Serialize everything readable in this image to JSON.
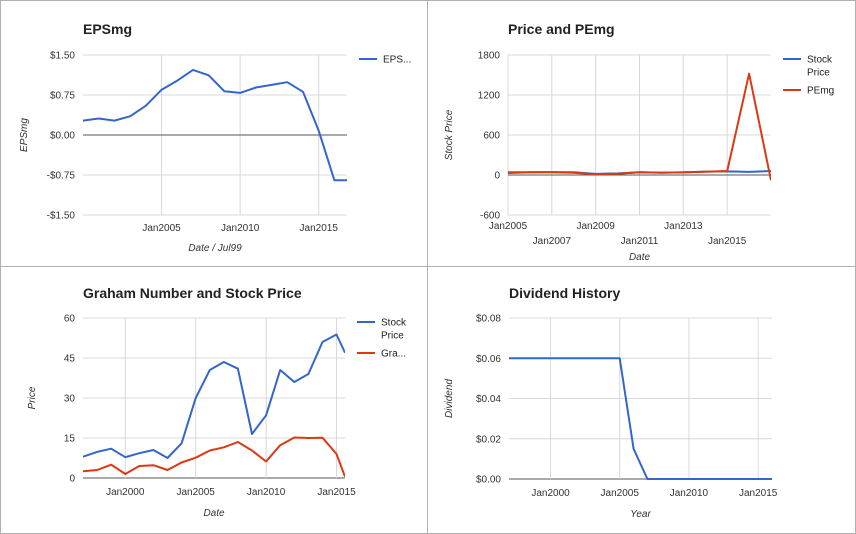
{
  "charts": [
    {
      "id": "eps",
      "title": "EPSmg",
      "xlabel": "Date / Jul99",
      "ylabel": "EPSmg",
      "chart_data": {
        "type": "line",
        "title": "EPSmg",
        "xlabel": "Date / Jul99",
        "ylabel": "EPSmg",
        "xlim": [
          2000,
          2016.8
        ],
        "ylim": [
          -1.5,
          1.5
        ],
        "x_ticks": [
          2005,
          2010,
          2015
        ],
        "x_tick_labels": [
          "Jan2005",
          "Jan2010",
          "Jan2015"
        ],
        "y_ticks": [
          -1.5,
          -0.75,
          0,
          0.75,
          1.5
        ],
        "y_tick_labels": [
          "-$1.50",
          "-$0.75",
          "$0.00",
          "$0.75",
          "$1.50"
        ],
        "grid": true,
        "legend_position": "right",
        "series": [
          {
            "name": "EPS...",
            "color": "#3366cc",
            "x": [
              2000,
              2001,
              2002,
              2003,
              2004,
              2005,
              2006,
              2007,
              2008,
              2009,
              2010,
              2011,
              2012,
              2013,
              2014,
              2015,
              2016,
              2016.8
            ],
            "y": [
              0.27,
              0.31,
              0.27,
              0.35,
              0.55,
              0.85,
              1.02,
              1.22,
              1.12,
              0.82,
              0.79,
              0.89,
              0.94,
              0.99,
              0.81,
              0.08,
              -0.85,
              -0.85
            ]
          }
        ]
      }
    },
    {
      "id": "price_pe",
      "title": "Price and PEmg",
      "xlabel": "Date",
      "ylabel": "Stock Price",
      "chart_data": {
        "type": "line",
        "title": "Price and PEmg",
        "xlabel": "Date",
        "ylabel": "Stock Price",
        "xlim": [
          2005,
          2017
        ],
        "ylim": [
          -600,
          1800
        ],
        "x_ticks": [
          2005,
          2007,
          2009,
          2011,
          2013,
          2015
        ],
        "x_tick_labels": [
          "Jan2005",
          "Jan2007",
          "Jan2009",
          "Jan2011",
          "Jan2013",
          "Jan2015"
        ],
        "y_ticks": [
          -600,
          0,
          600,
          1200,
          1800
        ],
        "y_tick_labels": [
          "-600",
          "0",
          "600",
          "1200",
          "1800"
        ],
        "grid": true,
        "legend_position": "right",
        "series": [
          {
            "name": "Stock Price",
            "color": "#3366cc",
            "x": [
              2005,
              2006,
              2007,
              2008,
              2009,
              2010,
              2011,
              2012,
              2013,
              2014,
              2015,
              2016,
              2017
            ],
            "y": [
              30,
              40,
              44,
              41,
              16,
              24,
              41,
              36,
              39,
              51,
              54,
              47,
              60
            ]
          },
          {
            "name": "PEmg",
            "color": "#dc3912",
            "x": [
              2005,
              2006,
              2007,
              2008,
              2009,
              2010,
              2011,
              2012,
              2013,
              2014,
              2015,
              2016,
              2017
            ],
            "y": [
              40,
              42,
              40,
              35,
              12,
              20,
              42,
              35,
              40,
              50,
              60,
              1520,
              -80
            ]
          }
        ]
      }
    },
    {
      "id": "graham",
      "title": "Graham Number and Stock Price",
      "xlabel": "Date",
      "ylabel": "Price",
      "chart_data": {
        "type": "line",
        "title": "Graham Number and Stock Price",
        "xlabel": "Date",
        "ylabel": "Price",
        "xlim": [
          1997,
          2015.6
        ],
        "ylim": [
          0,
          60
        ],
        "x_ticks": [
          2000,
          2005,
          2010,
          2015
        ],
        "x_tick_labels": [
          "Jan2000",
          "Jan2005",
          "Jan2010",
          "Jan2015"
        ],
        "y_ticks": [
          0,
          15,
          30,
          45,
          60
        ],
        "y_tick_labels": [
          "0",
          "15",
          "30",
          "45",
          "60"
        ],
        "grid": true,
        "legend_position": "right",
        "series": [
          {
            "name": "Stock Price",
            "color": "#3366cc",
            "x": [
              1997,
              1998,
              1999,
              2000,
              2001,
              2002,
              2003,
              2004,
              2005,
              2006,
              2007,
              2008,
              2009,
              2010,
              2011,
              2012,
              2013,
              2014,
              2015,
              2015.6
            ],
            "y": [
              8,
              9.8,
              11,
              7.8,
              9.3,
              10.5,
              7.5,
              13,
              30,
              40.5,
              43.5,
              41,
              16.5,
              23.5,
              40.5,
              36,
              39,
              51,
              53.8,
              47
            ]
          },
          {
            "name": "Gra...",
            "color": "#dc3912",
            "x": [
              1997,
              1998,
              1999,
              2000,
              2001,
              2002,
              2003,
              2004,
              2005,
              2006,
              2007,
              2008,
              2009,
              2010,
              2011,
              2012,
              2013,
              2014,
              2015,
              2015.6
            ],
            "y": [
              2.5,
              3,
              5,
              1.5,
              4.5,
              4.8,
              3,
              5.8,
              7.6,
              10.3,
              11.5,
              13.5,
              10.3,
              6.2,
              12.3,
              15.2,
              15,
              15.1,
              9,
              0.5
            ]
          }
        ]
      }
    },
    {
      "id": "dividend",
      "title": "Dividend History",
      "xlabel": "Year",
      "ylabel": "Dividend",
      "chart_data": {
        "type": "line",
        "title": "Dividend History",
        "xlabel": "Year",
        "ylabel": "Dividend",
        "xlim": [
          1997,
          2016
        ],
        "ylim": [
          0,
          0.08
        ],
        "x_ticks": [
          2000,
          2005,
          2010,
          2015
        ],
        "x_tick_labels": [
          "Jan2000",
          "Jan2005",
          "Jan2010",
          "Jan2015"
        ],
        "y_ticks": [
          0,
          0.02,
          0.04,
          0.06,
          0.08
        ],
        "y_tick_labels": [
          "$0.00",
          "$0.02",
          "$0.04",
          "$0.06",
          "$0.08"
        ],
        "grid": true,
        "legend_position": "none",
        "series": [
          {
            "name": "Dividend",
            "color": "#3366cc",
            "x": [
              1997,
              1998,
              1999,
              2000,
              2001,
              2002,
              2003,
              2004,
              2005,
              2006,
              2007,
              2008,
              2009,
              2010,
              2011,
              2012,
              2013,
              2014,
              2015,
              2016
            ],
            "y": [
              0.06,
              0.06,
              0.06,
              0.06,
              0.06,
              0.06,
              0.06,
              0.06,
              0.06,
              0.015,
              0,
              0,
              0,
              0,
              0,
              0,
              0,
              0,
              0,
              0
            ]
          }
        ]
      }
    }
  ]
}
